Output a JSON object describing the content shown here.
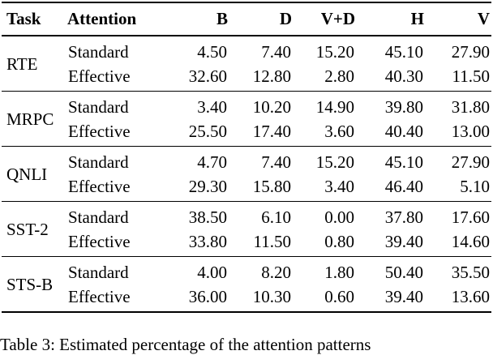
{
  "table": {
    "columns": [
      "Task",
      "Attention",
      "B",
      "D",
      "V+D",
      "H",
      "V"
    ],
    "groups": [
      {
        "task": "RTE",
        "rows": [
          {
            "attention": "Standard",
            "values": [
              "4.50",
              "7.40",
              "15.20",
              "45.10",
              "27.90"
            ]
          },
          {
            "attention": "Effective",
            "values": [
              "32.60",
              "12.80",
              "2.80",
              "40.30",
              "11.50"
            ]
          }
        ]
      },
      {
        "task": "MRPC",
        "rows": [
          {
            "attention": "Standard",
            "values": [
              "3.40",
              "10.20",
              "14.90",
              "39.80",
              "31.80"
            ]
          },
          {
            "attention": "Effective",
            "values": [
              "25.50",
              "17.40",
              "3.60",
              "40.40",
              "13.00"
            ]
          }
        ]
      },
      {
        "task": "QNLI",
        "rows": [
          {
            "attention": "Standard",
            "values": [
              "4.70",
              "7.40",
              "15.20",
              "45.10",
              "27.90"
            ]
          },
          {
            "attention": "Effective",
            "values": [
              "29.30",
              "15.80",
              "3.40",
              "46.40",
              "5.10"
            ]
          }
        ]
      },
      {
        "task": "SST-2",
        "rows": [
          {
            "attention": "Standard",
            "values": [
              "38.50",
              "6.10",
              "0.00",
              "37.80",
              "17.60"
            ]
          },
          {
            "attention": "Effective",
            "values": [
              "33.80",
              "11.50",
              "0.80",
              "39.40",
              "14.60"
            ]
          }
        ]
      },
      {
        "task": "STS-B",
        "rows": [
          {
            "attention": "Standard",
            "values": [
              "4.00",
              "8.20",
              "1.80",
              "50.40",
              "35.50"
            ]
          },
          {
            "attention": "Effective",
            "values": [
              "36.00",
              "10.30",
              "0.60",
              "39.40",
              "13.60"
            ]
          }
        ]
      }
    ]
  },
  "caption": {
    "text": "Table 3: Estimated percentage of the attention patterns"
  },
  "colors": {
    "text": "#000000",
    "background": "#ffffff",
    "rule": "#000000"
  }
}
